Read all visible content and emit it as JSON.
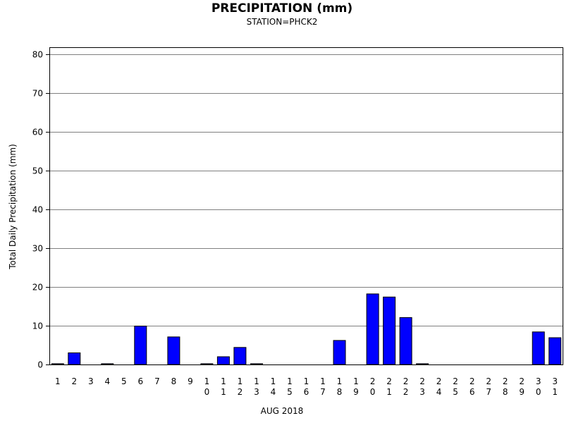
{
  "chart_data": {
    "type": "bar",
    "title": "PRECIPITATION (mm)",
    "subtitle": "STATION=PHCK2",
    "xlabel": "AUG 2018",
    "ylabel": "Total Daily Precipitation (mm)",
    "ylim": [
      0,
      80
    ],
    "yticks": [
      0,
      10,
      20,
      30,
      40,
      50,
      60,
      70,
      80
    ],
    "grid": true,
    "categories": [
      "1",
      "2",
      "3",
      "4",
      "5",
      "6",
      "7",
      "8",
      "9",
      "10",
      "11",
      "12",
      "13",
      "14",
      "15",
      "16",
      "17",
      "18",
      "19",
      "20",
      "21",
      "22",
      "23",
      "24",
      "25",
      "26",
      "27",
      "28",
      "29",
      "30",
      "31"
    ],
    "values": [
      0.2,
      3.0,
      0,
      0.2,
      0,
      9.9,
      0,
      7.1,
      0,
      0.2,
      2.0,
      4.4,
      0.2,
      0,
      0,
      0,
      0,
      6.2,
      0,
      18.2,
      17.4,
      12.1,
      0.2,
      0,
      0,
      0,
      0,
      0,
      0,
      8.4,
      6.9
    ],
    "bar_color": "#0000ff"
  }
}
